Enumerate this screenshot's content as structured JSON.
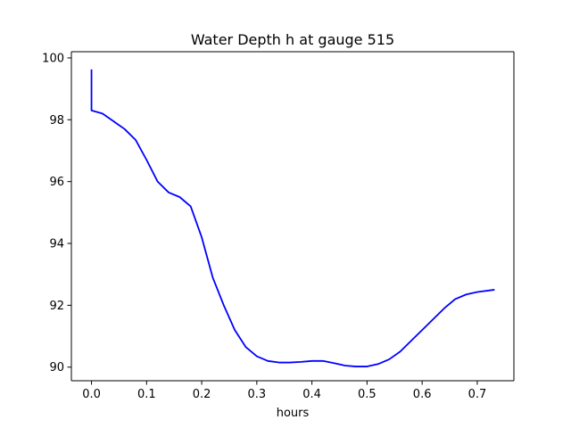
{
  "chart_data": {
    "type": "line",
    "title": "Water Depth h at gauge 515",
    "xlabel": "hours",
    "ylabel": "",
    "xlim": [
      -0.0365,
      0.7665
    ],
    "ylim": [
      89.56,
      100.2
    ],
    "xticks": [
      0.0,
      0.1,
      0.2,
      0.3,
      0.4,
      0.5,
      0.6,
      0.7
    ],
    "xtick_labels": [
      "0.0",
      "0.1",
      "0.2",
      "0.3",
      "0.4",
      "0.5",
      "0.6",
      "0.7"
    ],
    "yticks": [
      90,
      92,
      94,
      96,
      98,
      100
    ],
    "ytick_labels": [
      "90",
      "92",
      "94",
      "96",
      "98",
      "100"
    ],
    "grid": false,
    "series": [
      {
        "color": "#0000ff",
        "x": [
          0.0,
          0.0,
          0.0,
          0.02,
          0.04,
          0.06,
          0.08,
          0.1,
          0.12,
          0.14,
          0.16,
          0.18,
          0.2,
          0.22,
          0.24,
          0.26,
          0.28,
          0.3,
          0.32,
          0.34,
          0.36,
          0.38,
          0.4,
          0.42,
          0.44,
          0.46,
          0.48,
          0.5,
          0.52,
          0.54,
          0.56,
          0.58,
          0.6,
          0.62,
          0.64,
          0.66,
          0.68,
          0.7,
          0.73
        ],
        "y": [
          99.6,
          98.3,
          98.3,
          98.2,
          97.95,
          97.7,
          97.35,
          96.7,
          96.0,
          95.65,
          95.5,
          95.2,
          94.2,
          92.9,
          92.0,
          91.2,
          90.65,
          90.35,
          90.2,
          90.15,
          90.15,
          90.17,
          90.2,
          90.2,
          90.13,
          90.05,
          90.02,
          90.02,
          90.1,
          90.25,
          90.5,
          90.85,
          91.2,
          91.55,
          91.9,
          92.2,
          92.35,
          92.43,
          92.5
        ]
      }
    ]
  }
}
